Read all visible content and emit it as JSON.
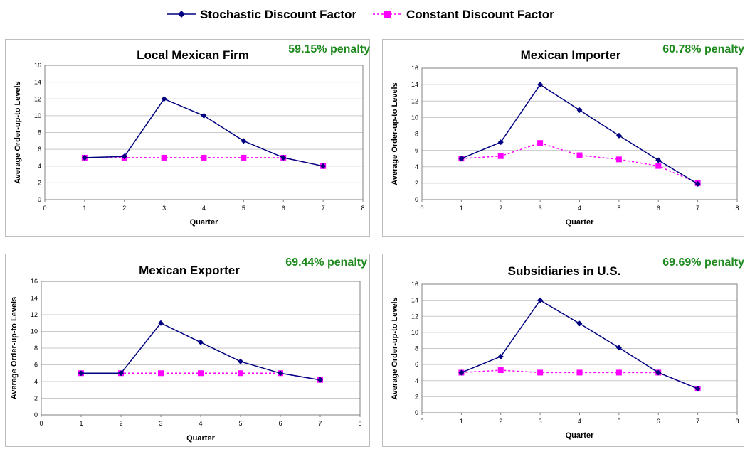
{
  "legend": {
    "series": [
      {
        "name": "Stochastic Discount Factor",
        "color": "#000080",
        "marker": "diamond",
        "line": "solid"
      },
      {
        "name": "Constant Discount Factor",
        "color": "#ff00ff",
        "marker": "square",
        "line": "dashed"
      }
    ]
  },
  "chart_data": [
    {
      "type": "line",
      "title": "Local Mexican Firm",
      "annotation": "59.15% penalty",
      "xlabel": "Quarter",
      "ylabel": "Average Order-up-to Levels",
      "xlim": [
        0,
        8
      ],
      "ylim": [
        0,
        16
      ],
      "xticks": [
        0,
        1,
        2,
        3,
        4,
        5,
        6,
        7,
        8
      ],
      "yticks": [
        0,
        2,
        4,
        6,
        8,
        10,
        12,
        14,
        16
      ],
      "x": [
        1,
        2,
        3,
        4,
        5,
        6,
        7
      ],
      "series": [
        {
          "name": "Stochastic Discount Factor",
          "values": [
            5.0,
            5.15,
            12.0,
            10.0,
            7.0,
            5.0,
            4.0
          ]
        },
        {
          "name": "Constant Discount Factor",
          "values": [
            5.0,
            5.0,
            5.0,
            5.0,
            5.0,
            5.0,
            4.0
          ]
        }
      ],
      "grid": true
    },
    {
      "type": "line",
      "title": "Mexican Importer",
      "annotation": "60.78% penalty",
      "xlabel": "Quarter",
      "ylabel": "Average Order-up-to Levels",
      "xlim": [
        0,
        8
      ],
      "ylim": [
        0,
        16
      ],
      "xticks": [
        0,
        1,
        2,
        3,
        4,
        5,
        6,
        7,
        8
      ],
      "yticks": [
        0,
        2,
        4,
        6,
        8,
        10,
        12,
        14,
        16
      ],
      "x": [
        1,
        2,
        3,
        4,
        5,
        6,
        7
      ],
      "series": [
        {
          "name": "Stochastic Discount Factor",
          "values": [
            5.0,
            7.0,
            14.0,
            10.9,
            7.8,
            4.8,
            1.9
          ]
        },
        {
          "name": "Constant Discount Factor",
          "values": [
            5.0,
            5.3,
            6.9,
            5.4,
            4.9,
            4.1,
            2.0
          ]
        }
      ],
      "grid": true
    },
    {
      "type": "line",
      "title": "Mexican Exporter",
      "annotation": "69.44% penalty",
      "xlabel": "Quarter",
      "ylabel": "Average Order-up-to Levels",
      "xlim": [
        0,
        8
      ],
      "ylim": [
        0,
        16
      ],
      "xticks": [
        0,
        1,
        2,
        3,
        4,
        5,
        6,
        7,
        8
      ],
      "yticks": [
        0,
        2,
        4,
        6,
        8,
        10,
        12,
        14,
        16
      ],
      "x": [
        1,
        2,
        3,
        4,
        5,
        6,
        7
      ],
      "series": [
        {
          "name": "Stochastic Discount Factor",
          "values": [
            5.0,
            5.0,
            11.0,
            8.7,
            6.4,
            5.0,
            4.2
          ]
        },
        {
          "name": "Constant Discount Factor",
          "values": [
            5.0,
            5.0,
            5.0,
            5.0,
            5.0,
            5.0,
            4.2
          ]
        }
      ],
      "grid": true
    },
    {
      "type": "line",
      "title": "Subsidiaries in U.S.",
      "annotation": "69.69% penalty",
      "xlabel": "Quarter",
      "ylabel": "Average Order-up-to Levels",
      "xlim": [
        0,
        8
      ],
      "ylim": [
        0,
        16
      ],
      "xticks": [
        0,
        1,
        2,
        3,
        4,
        5,
        6,
        7,
        8
      ],
      "yticks": [
        0,
        2,
        4,
        6,
        8,
        10,
        12,
        14,
        16
      ],
      "x": [
        1,
        2,
        3,
        4,
        5,
        6,
        7
      ],
      "series": [
        {
          "name": "Stochastic Discount Factor",
          "values": [
            5.0,
            7.0,
            14.0,
            11.1,
            8.1,
            5.0,
            3.0
          ]
        },
        {
          "name": "Constant Discount Factor",
          "values": [
            5.0,
            5.3,
            5.0,
            5.0,
            5.0,
            5.0,
            3.0
          ]
        }
      ],
      "grid": true
    }
  ]
}
